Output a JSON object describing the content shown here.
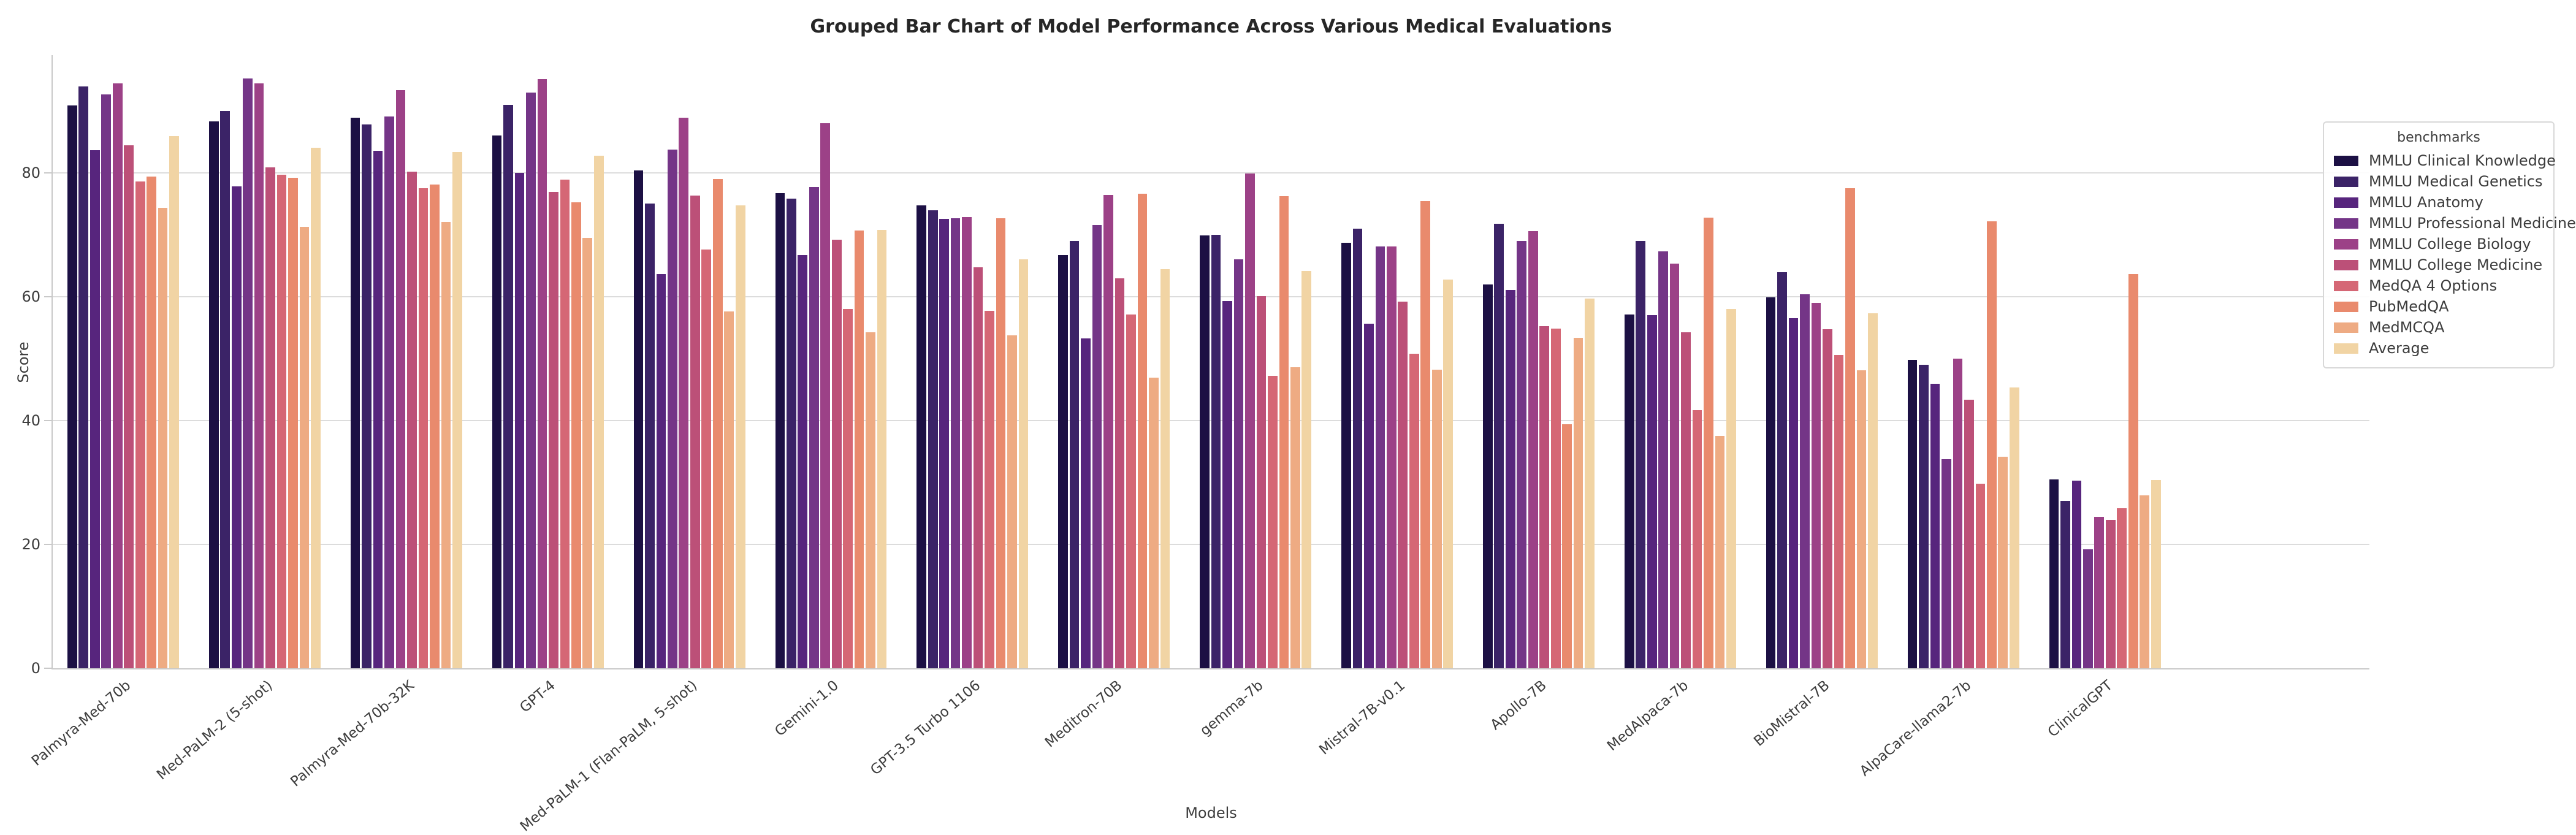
{
  "title": "Grouped Bar Chart of Model Performance Across Various Medical Evaluations",
  "legend": {
    "title": "benchmarks"
  },
  "axes": {
    "xlabel": "Models",
    "ylabel": "Score",
    "yticks": [
      0,
      20,
      40,
      60,
      80
    ]
  },
  "chart_data": {
    "type": "bar",
    "title": "Grouped Bar Chart of Model Performance Across Various Medical Evaluations",
    "xlabel": "Models",
    "ylabel": "Score",
    "ylim": [
      0,
      99
    ],
    "yticks": [
      0,
      20,
      40,
      60,
      80
    ],
    "grid": true,
    "legend_title": "benchmarks",
    "legend_position": "outside-upper-right",
    "categories": [
      "Palmyra-Med-70b",
      "Med-PaLM-2 (5-shot)",
      "Palmyra-Med-70b-32K",
      "GPT-4",
      "Med-PaLM-1 (Flan-PaLM, 5-shot)",
      "Gemini-1.0",
      "GPT-3.5 Turbo 1106",
      "Meditron-70B",
      "gemma-7b",
      "Mistral-7B-v0.1",
      "Apollo-7B",
      "MedAlpaca-7b",
      "BioMistral-7B",
      "AlpaCare-llama2-7b",
      "ClinicalGPT"
    ],
    "series": [
      {
        "name": "MMLU Clinical Knowledge",
        "color": "#1c1044",
        "values": [
          90.9,
          88.3,
          88.9,
          86.0,
          80.4,
          76.7,
          74.7,
          66.7,
          69.9,
          68.7,
          62.0,
          57.1,
          59.9,
          49.8,
          30.5
        ]
      },
      {
        "name": "MMLU Medical Genetics",
        "color": "#3b2367",
        "values": [
          94.0,
          90.0,
          87.8,
          91.0,
          75.0,
          75.8,
          74.0,
          69.0,
          70.0,
          71.0,
          71.8,
          69.0,
          64.0,
          49.0,
          27.0
        ]
      },
      {
        "name": "MMLU Anatomy",
        "color": "#57257d",
        "values": [
          83.7,
          77.8,
          83.6,
          80.0,
          63.7,
          66.7,
          72.6,
          53.3,
          59.3,
          55.6,
          61.1,
          57.0,
          56.5,
          45.9,
          30.3
        ]
      },
      {
        "name": "MMLU Professional Medicine",
        "color": "#743587",
        "values": [
          92.7,
          95.2,
          89.1,
          93.0,
          83.8,
          77.7,
          72.7,
          71.6,
          66.0,
          68.1,
          69.0,
          67.3,
          60.4,
          33.8,
          19.2
        ]
      },
      {
        "name": "MMLU College Biology",
        "color": "#9c4187",
        "values": [
          94.4,
          94.4,
          93.4,
          95.1,
          88.9,
          88.0,
          72.9,
          76.4,
          79.9,
          68.1,
          70.6,
          65.3,
          59.0,
          50.0,
          24.5
        ]
      },
      {
        "name": "MMLU College Medicine",
        "color": "#bc5078",
        "values": [
          84.4,
          80.9,
          80.2,
          76.9,
          76.3,
          69.2,
          64.7,
          63.0,
          60.1,
          59.2,
          55.2,
          54.3,
          54.7,
          43.4,
          24.0
        ]
      },
      {
        "name": "MedQA 4 Options",
        "color": "#d56775",
        "values": [
          78.6,
          79.7,
          77.5,
          78.9,
          67.6,
          58.0,
          57.7,
          57.1,
          47.2,
          50.8,
          54.8,
          41.7,
          50.6,
          29.8,
          25.8
        ]
      },
      {
        "name": "PubMedQA",
        "color": "#e98a6d",
        "values": [
          79.4,
          79.2,
          78.1,
          75.2,
          79.0,
          70.7,
          72.7,
          76.6,
          76.2,
          75.4,
          39.4,
          72.8,
          77.5,
          72.2,
          63.7
        ]
      },
      {
        "name": "MedMCQA",
        "color": "#eeab83",
        "values": [
          74.4,
          71.3,
          72.1,
          69.5,
          57.6,
          54.3,
          53.8,
          46.9,
          48.6,
          48.2,
          53.4,
          37.5,
          48.1,
          34.2,
          27.9
        ]
      },
      {
        "name": "Average",
        "color": "#f1d4a4",
        "values": [
          85.9,
          84.1,
          83.4,
          82.8,
          74.7,
          70.8,
          66.0,
          64.5,
          64.2,
          62.8,
          59.7,
          58.0,
          57.3,
          45.3,
          30.4
        ]
      }
    ]
  }
}
